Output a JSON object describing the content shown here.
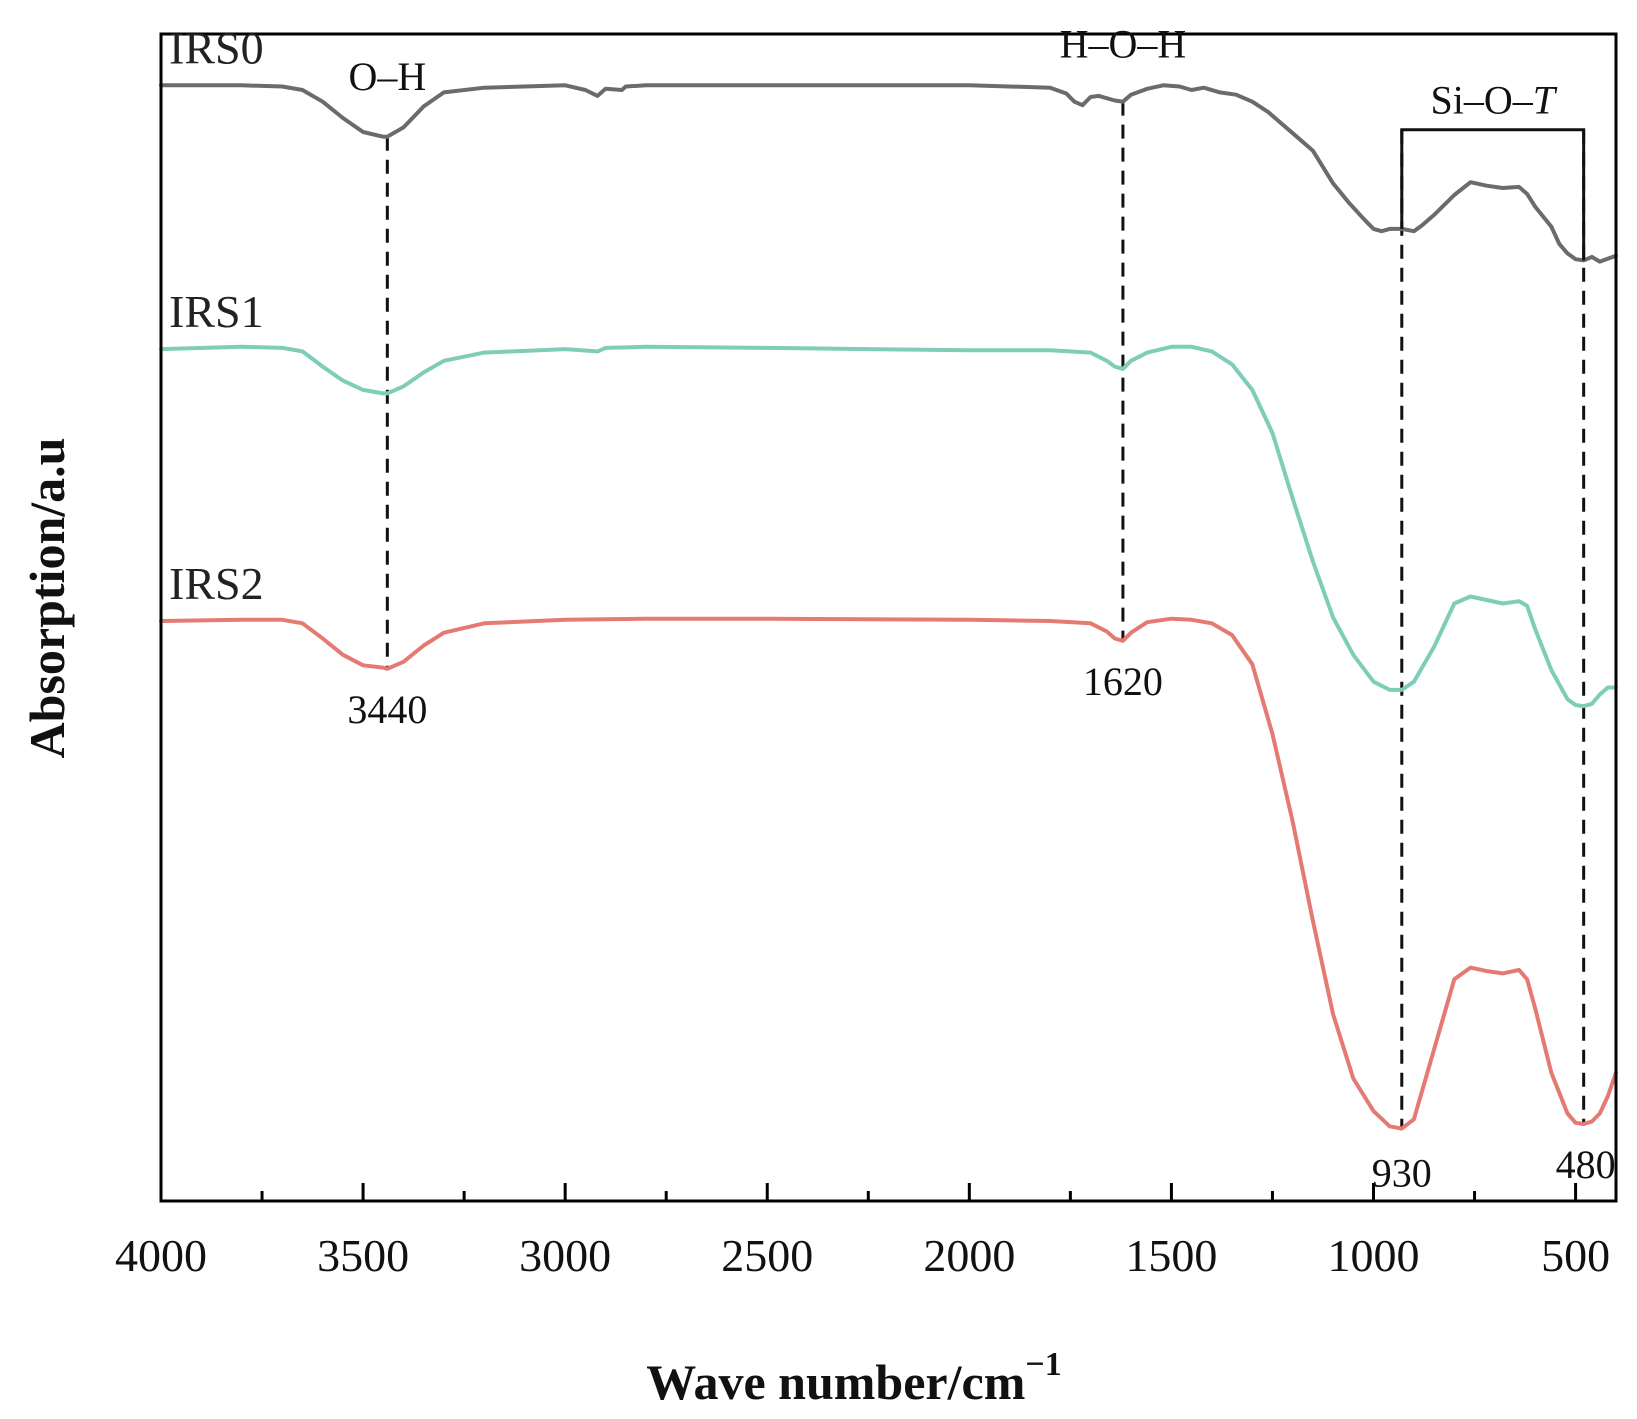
{
  "chart_data": {
    "type": "line",
    "xlabel": "Wave number/cm",
    "xlabel_superscript": "−1",
    "ylabel": "Absorption/a.u",
    "xlim": [
      4000,
      400
    ],
    "x_reversed": true,
    "ylim": [
      0,
      10
    ],
    "grid": false,
    "x_ticks": [
      4000,
      3500,
      3000,
      2500,
      2000,
      1500,
      1000,
      500
    ],
    "x_minor_ticks": [
      3750,
      3250,
      2750,
      2250,
      1750,
      1250,
      750
    ],
    "series": [
      {
        "name": "IRS0",
        "color": "#6b6b6b",
        "x": [
          4000,
          3800,
          3700,
          3650,
          3600,
          3550,
          3500,
          3450,
          3440,
          3400,
          3350,
          3300,
          3200,
          3000,
          2950,
          2920,
          2900,
          2860,
          2850,
          2800,
          2500,
          2000,
          1800,
          1760,
          1740,
          1720,
          1700,
          1680,
          1640,
          1620,
          1600,
          1560,
          1520,
          1480,
          1450,
          1420,
          1380,
          1340,
          1300,
          1260,
          1200,
          1150,
          1100,
          1060,
          1020,
          1000,
          980,
          960,
          930,
          900,
          880,
          850,
          800,
          760,
          720,
          680,
          640,
          620,
          600,
          560,
          540,
          520,
          500,
          480,
          460,
          440,
          400
        ],
        "values": [
          9.56,
          9.56,
          9.55,
          9.52,
          9.42,
          9.28,
          9.16,
          9.12,
          9.12,
          9.2,
          9.38,
          9.5,
          9.54,
          9.56,
          9.52,
          9.47,
          9.53,
          9.52,
          9.55,
          9.56,
          9.56,
          9.56,
          9.54,
          9.49,
          9.42,
          9.39,
          9.46,
          9.47,
          9.43,
          9.42,
          9.48,
          9.53,
          9.56,
          9.55,
          9.52,
          9.54,
          9.5,
          9.48,
          9.42,
          9.33,
          9.15,
          9.0,
          8.72,
          8.55,
          8.4,
          8.33,
          8.31,
          8.33,
          8.33,
          8.31,
          8.36,
          8.45,
          8.62,
          8.73,
          8.7,
          8.68,
          8.69,
          8.63,
          8.52,
          8.35,
          8.2,
          8.12,
          8.07,
          8.06,
          8.09,
          8.05,
          8.1
        ]
      },
      {
        "name": "IRS1",
        "color": "#7ecdb8",
        "x": [
          4000,
          3800,
          3700,
          3650,
          3600,
          3550,
          3500,
          3450,
          3440,
          3400,
          3350,
          3300,
          3200,
          3000,
          2920,
          2900,
          2800,
          2500,
          2000,
          1800,
          1700,
          1660,
          1640,
          1620,
          1600,
          1560,
          1500,
          1450,
          1400,
          1350,
          1300,
          1250,
          1200,
          1150,
          1100,
          1050,
          1000,
          960,
          930,
          900,
          850,
          800,
          760,
          720,
          680,
          640,
          620,
          600,
          560,
          520,
          500,
          480,
          460,
          440,
          420,
          400
        ],
        "values": [
          7.3,
          7.32,
          7.31,
          7.28,
          7.15,
          7.03,
          6.95,
          6.92,
          6.92,
          6.98,
          7.1,
          7.2,
          7.27,
          7.3,
          7.28,
          7.31,
          7.32,
          7.31,
          7.29,
          7.29,
          7.27,
          7.2,
          7.15,
          7.13,
          7.2,
          7.27,
          7.32,
          7.32,
          7.28,
          7.17,
          6.95,
          6.58,
          6.02,
          5.48,
          5.0,
          4.68,
          4.45,
          4.38,
          4.38,
          4.45,
          4.75,
          5.12,
          5.18,
          5.15,
          5.12,
          5.14,
          5.1,
          4.9,
          4.55,
          4.3,
          4.25,
          4.24,
          4.26,
          4.34,
          4.4,
          4.4
        ]
      },
      {
        "name": "IRS2",
        "color": "#e57a72",
        "x": [
          4000,
          3800,
          3700,
          3650,
          3600,
          3550,
          3500,
          3450,
          3440,
          3400,
          3350,
          3300,
          3200,
          3000,
          2800,
          2500,
          2000,
          1800,
          1700,
          1660,
          1640,
          1620,
          1600,
          1560,
          1500,
          1450,
          1400,
          1350,
          1300,
          1250,
          1200,
          1150,
          1100,
          1050,
          1000,
          960,
          930,
          900,
          850,
          800,
          760,
          720,
          680,
          640,
          620,
          600,
          560,
          520,
          500,
          480,
          460,
          440,
          420,
          400
        ],
        "values": [
          4.97,
          4.98,
          4.98,
          4.95,
          4.82,
          4.68,
          4.59,
          4.57,
          4.56,
          4.62,
          4.76,
          4.87,
          4.95,
          4.98,
          4.99,
          4.99,
          4.98,
          4.97,
          4.95,
          4.88,
          4.82,
          4.8,
          4.87,
          4.96,
          4.99,
          4.98,
          4.95,
          4.85,
          4.6,
          4.0,
          3.25,
          2.4,
          1.6,
          1.05,
          0.77,
          0.64,
          0.62,
          0.7,
          1.3,
          1.9,
          2.0,
          1.97,
          1.95,
          1.98,
          1.9,
          1.65,
          1.1,
          0.75,
          0.67,
          0.66,
          0.68,
          0.75,
          0.9,
          1.1
        ]
      }
    ],
    "vlines": [
      3440,
      1620,
      930,
      480
    ],
    "annotations": {
      "oh": "O–H",
      "hoh": "H–O–H",
      "sio_prefix": "Si–O–",
      "sio_italic": "T"
    },
    "peak_labels": [
      {
        "x": 3440,
        "text": "3440"
      },
      {
        "x": 1620,
        "text": "1620"
      },
      {
        "x": 930,
        "text": "930"
      },
      {
        "x": 480,
        "text": "480"
      }
    ],
    "bracket": {
      "from": 930,
      "to": 480
    }
  }
}
